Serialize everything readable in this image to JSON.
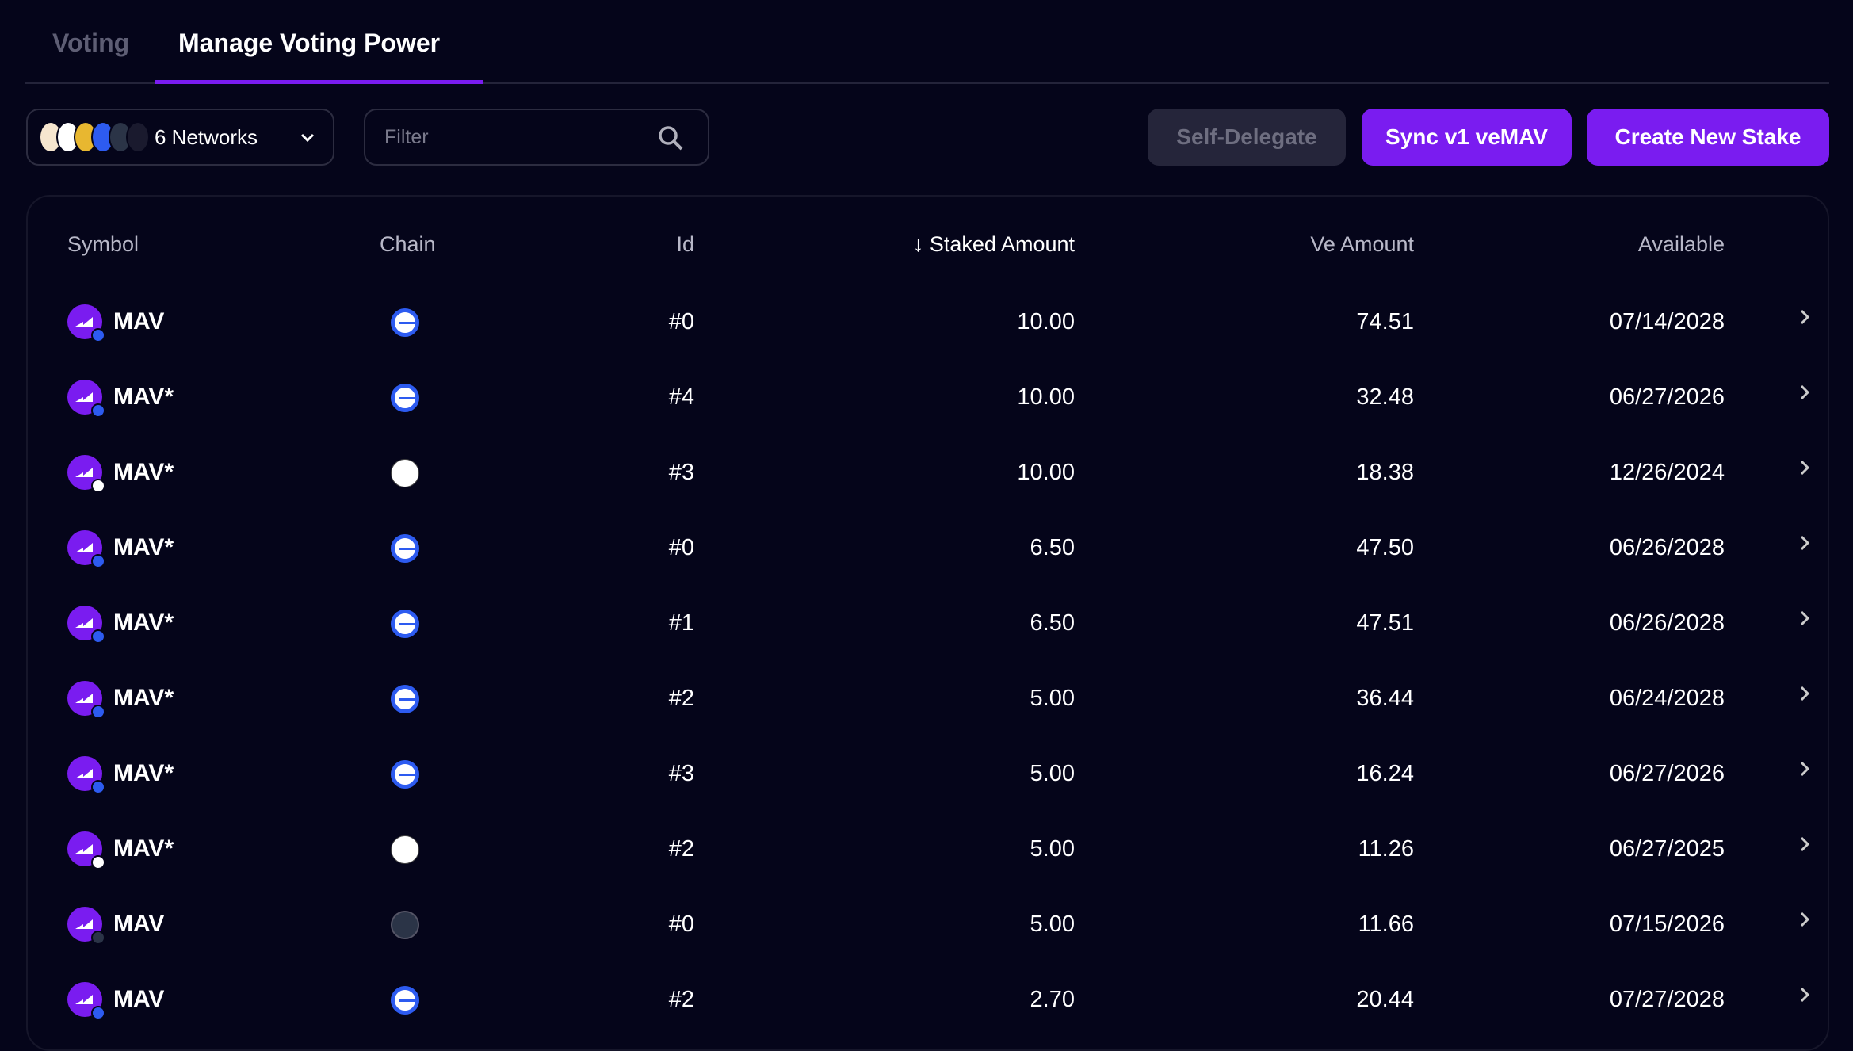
{
  "tabs": [
    {
      "label": "Voting"
    },
    {
      "label": "Manage Voting Power"
    }
  ],
  "toolbar": {
    "networks_label": "6 Networks",
    "filter_placeholder": "Filter",
    "self_delegate": "Self-Delegate",
    "sync": "Sync v1 veMAV",
    "create": "Create New Stake"
  },
  "colors": {
    "accent": "#7a1cf0",
    "background": "#05051a",
    "disabled": "#25253a"
  },
  "table": {
    "headers": {
      "symbol": "Symbol",
      "chain": "Chain",
      "id": "Id",
      "staked": "Staked Amount",
      "ve": "Ve Amount",
      "available": "Available"
    },
    "sort": {
      "column": "Staked Amount",
      "direction": "descending"
    },
    "rows": [
      {
        "symbol": "MAV",
        "chain": "base",
        "id": "#0",
        "staked": "10.00",
        "ve": "74.51",
        "available": "07/14/2028"
      },
      {
        "symbol": "MAV*",
        "chain": "base",
        "id": "#4",
        "staked": "10.00",
        "ve": "32.48",
        "available": "06/27/2026"
      },
      {
        "symbol": "MAV*",
        "chain": "zksync",
        "id": "#3",
        "staked": "10.00",
        "ve": "18.38",
        "available": "12/26/2024"
      },
      {
        "symbol": "MAV*",
        "chain": "base",
        "id": "#0",
        "staked": "6.50",
        "ve": "47.50",
        "available": "06/26/2028"
      },
      {
        "symbol": "MAV*",
        "chain": "base",
        "id": "#1",
        "staked": "6.50",
        "ve": "47.51",
        "available": "06/26/2028"
      },
      {
        "symbol": "MAV*",
        "chain": "base",
        "id": "#2",
        "staked": "5.00",
        "ve": "36.44",
        "available": "06/24/2028"
      },
      {
        "symbol": "MAV*",
        "chain": "base",
        "id": "#3",
        "staked": "5.00",
        "ve": "16.24",
        "available": "06/27/2026"
      },
      {
        "symbol": "MAV*",
        "chain": "zksync",
        "id": "#2",
        "staked": "5.00",
        "ve": "11.26",
        "available": "06/27/2025"
      },
      {
        "symbol": "MAV",
        "chain": "arbitrum",
        "id": "#0",
        "staked": "5.00",
        "ve": "11.66",
        "available": "07/15/2026"
      },
      {
        "symbol": "MAV",
        "chain": "base",
        "id": "#2",
        "staked": "2.70",
        "ve": "20.44",
        "available": "07/27/2028"
      }
    ]
  }
}
